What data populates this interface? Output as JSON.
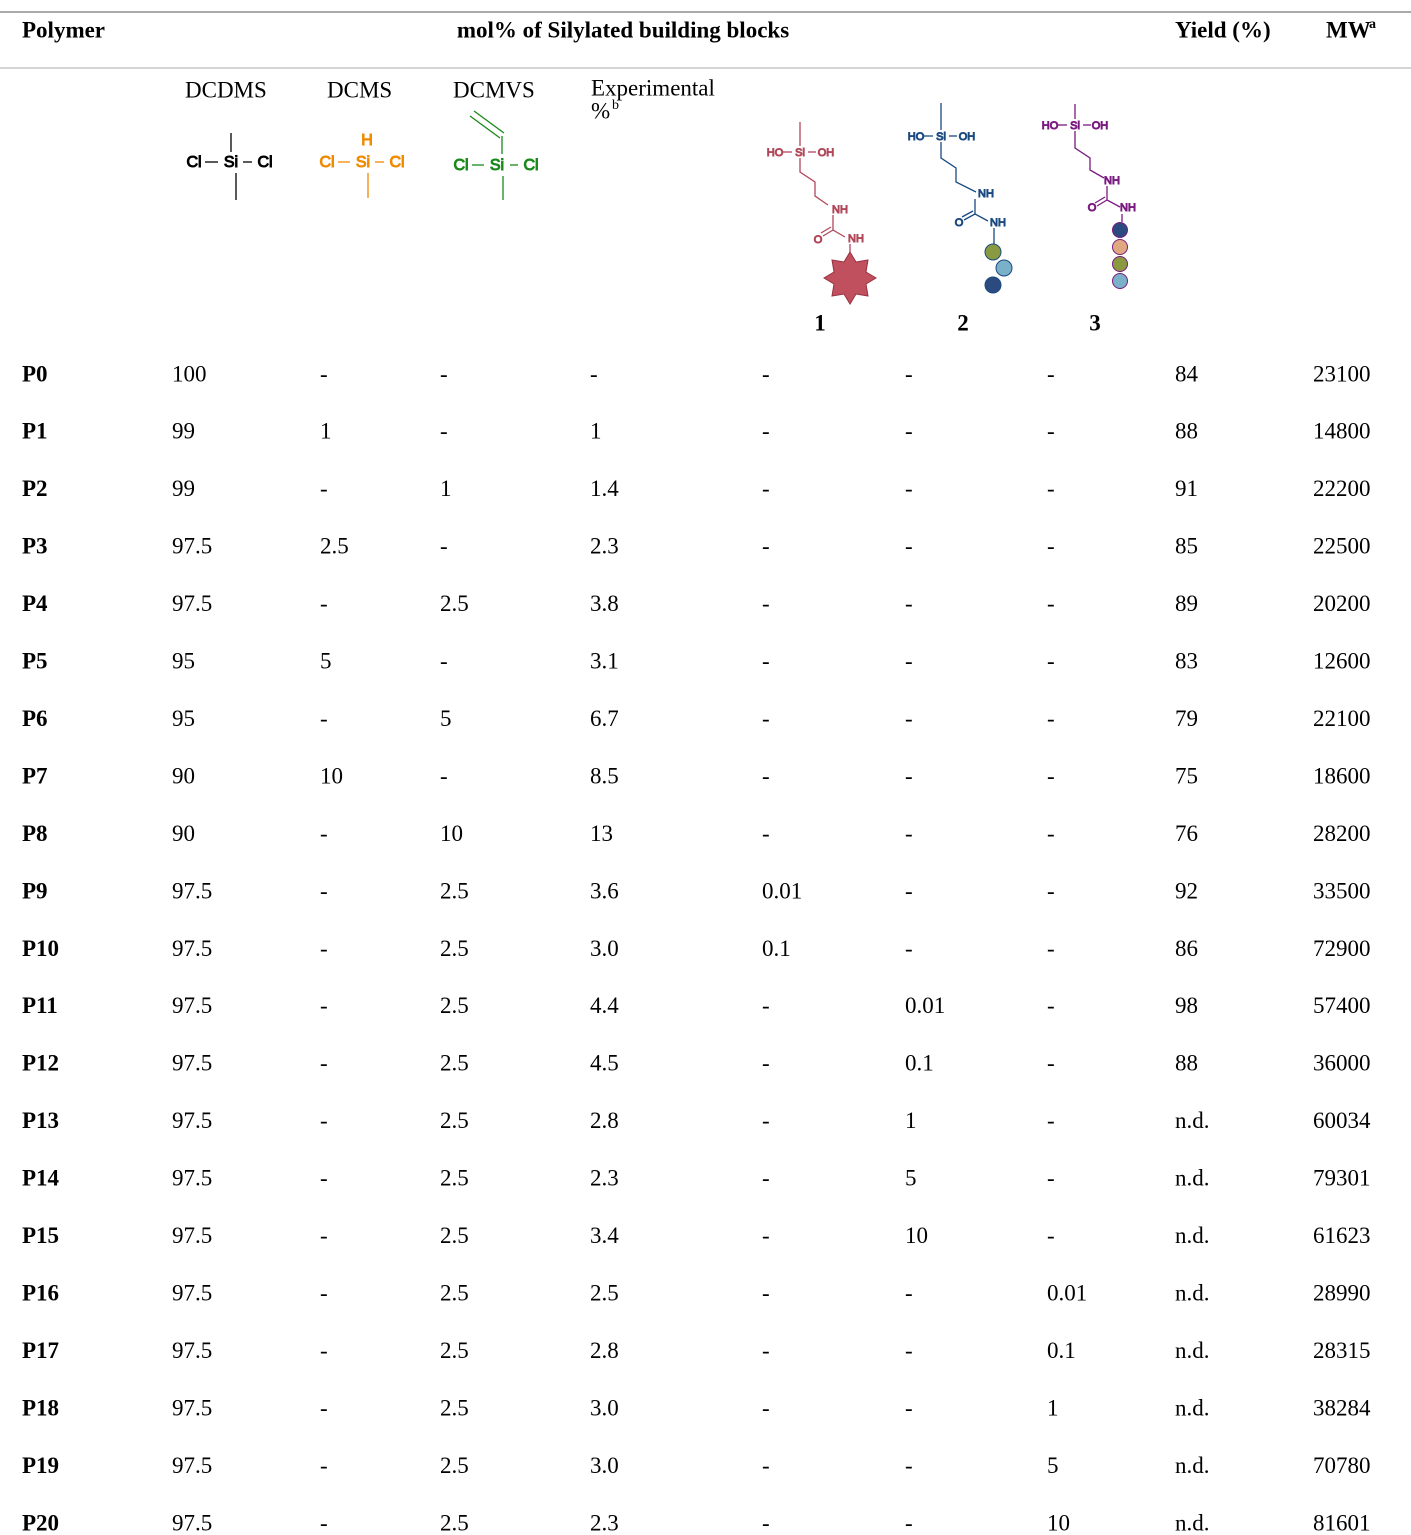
{
  "header": {
    "polymer": "Polymer",
    "group": "mol% of Silylated building blocks",
    "yield": "Yield (%)",
    "mw": "MW",
    "mw_note": "a"
  },
  "subheader": {
    "columns": [
      "DCDMS",
      "DCMS",
      "DCMVS",
      "Experimental",
      "%"
    ],
    "experimental_note": "b",
    "structures": [
      [
        "Cl",
        "Si",
        "Cl"
      ],
      [
        "H",
        "Cl",
        "Si",
        "Cl"
      ],
      [
        "Cl",
        "Si",
        "Cl"
      ],
      [
        "HO",
        "Si",
        "OH",
        "NH",
        "O",
        "NH"
      ],
      [
        "HO",
        "Si",
        "OH",
        "NH",
        "O",
        "NH"
      ],
      [
        "HO",
        "Si",
        "OH",
        "NH",
        "O",
        "NH"
      ]
    ],
    "compounds": [
      "1",
      "2",
      "3"
    ]
  },
  "table": {
    "rows": [
      [
        "P0",
        "100",
        "-",
        "-",
        "-",
        "-",
        "-",
        "-",
        "84",
        "23100"
      ],
      [
        "P1",
        "99",
        "1",
        "-",
        "1",
        "-",
        "-",
        "-",
        "88",
        "14800"
      ],
      [
        "P2",
        "99",
        "-",
        "1",
        "1.4",
        "-",
        "-",
        "-",
        "91",
        "22200"
      ],
      [
        "P3",
        "97.5",
        "2.5",
        "-",
        "2.3",
        "-",
        "-",
        "-",
        "85",
        "22500"
      ],
      [
        "P4",
        "97.5",
        "-",
        "2.5",
        "3.8",
        "-",
        "-",
        "-",
        "89",
        "20200"
      ],
      [
        "P5",
        "95",
        "5",
        "-",
        "3.1",
        "-",
        "-",
        "-",
        "83",
        "12600"
      ],
      [
        "P6",
        "95",
        "-",
        "5",
        "6.7",
        "-",
        "-",
        "-",
        "79",
        "22100"
      ],
      [
        "P7",
        "90",
        "10",
        "-",
        "8.5",
        "-",
        "-",
        "-",
        "75",
        "18600"
      ],
      [
        "P8",
        "90",
        "-",
        "10",
        "13",
        "-",
        "-",
        "-",
        "76",
        "28200"
      ],
      [
        "P9",
        "97.5",
        "-",
        "2.5",
        "3.6",
        "0.01",
        "-",
        "-",
        "92",
        "33500"
      ],
      [
        "P10",
        "97.5",
        "-",
        "2.5",
        "3.0",
        "0.1",
        "-",
        "-",
        "86",
        "72900"
      ],
      [
        "P11",
        "97.5",
        "-",
        "2.5",
        "4.4",
        "-",
        "0.01",
        "-",
        "98",
        "57400"
      ],
      [
        "P12",
        "97.5",
        "-",
        "2.5",
        "4.5",
        "-",
        "0.1",
        "-",
        "88",
        "36000"
      ],
      [
        "P13",
        "97.5",
        "-",
        "2.5",
        "2.8",
        "-",
        "1",
        "-",
        "n.d.",
        "60034"
      ],
      [
        "P14",
        "97.5",
        "-",
        "2.5",
        "2.3",
        "-",
        "5",
        "-",
        "n.d.",
        "79301"
      ],
      [
        "P15",
        "97.5",
        "-",
        "2.5",
        "3.4",
        "-",
        "10",
        "-",
        "n.d.",
        "61623"
      ],
      [
        "P16",
        "97.5",
        "-",
        "2.5",
        "2.5",
        "-",
        "-",
        "0.01",
        "n.d.",
        "28990"
      ],
      [
        "P17",
        "97.5",
        "-",
        "2.5",
        "2.8",
        "-",
        "-",
        "0.1",
        "n.d.",
        "28315"
      ],
      [
        "P18",
        "97.5",
        "-",
        "2.5",
        "3.0",
        "-",
        "-",
        "1",
        "n.d.",
        "38284"
      ],
      [
        "P19",
        "97.5",
        "-",
        "2.5",
        "3.0",
        "-",
        "-",
        "5",
        "n.d.",
        "70780"
      ],
      [
        "P20",
        "97.5",
        "-",
        "2.5",
        "2.3",
        "-",
        "-",
        "10",
        "n.d.",
        "81601"
      ]
    ]
  }
}
